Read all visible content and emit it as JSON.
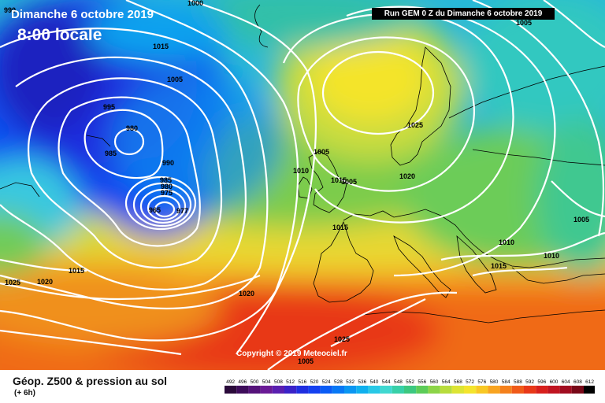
{
  "header": {
    "date_label": "Dimanche 6 octobre 2019",
    "time_label": "8:00 locale",
    "run_label": "Run GEM 0 Z du Dimanche 6 octobre 2019"
  },
  "copyright": "Copyright © 2019 Meteociel.fr",
  "footer": {
    "product_title": "Géop. Z500 & pression au sol",
    "horizon": "(+ 6h)"
  },
  "legend": {
    "ticks": [
      "492",
      "496",
      "500",
      "504",
      "508",
      "512",
      "516",
      "520",
      "524",
      "528",
      "532",
      "536",
      "540",
      "544",
      "548",
      "552",
      "556",
      "560",
      "564",
      "568",
      "572",
      "576",
      "580",
      "584",
      "588",
      "592",
      "596",
      "600",
      "604",
      "608",
      "612"
    ],
    "colors": [
      "#2a0a3a",
      "#3d0c5a",
      "#55137a",
      "#6a1a96",
      "#5a1fb0",
      "#3a22c8",
      "#1f2ee0",
      "#1440f0",
      "#0a5cf5",
      "#0878f5",
      "#0a96f2",
      "#10b0ee",
      "#28c8e6",
      "#40d8d0",
      "#38d0a8",
      "#3cc880",
      "#5ccc58",
      "#8cd448",
      "#b8dc3c",
      "#dce434",
      "#f4e42c",
      "#f8c824",
      "#f8a420",
      "#f4801c",
      "#f05a18",
      "#e83818",
      "#d8201c",
      "#c01420",
      "#a00c20",
      "#780818",
      "#000000"
    ]
  },
  "isobar_labels": [
    "990",
    "1000",
    "1005",
    "1015",
    "1005",
    "995",
    "980",
    "985",
    "990",
    "985",
    "980",
    "975",
    "965",
    "977",
    "1010",
    "1005",
    "1015",
    "1005",
    "1020",
    "1025",
    "1025",
    "1020",
    "1015",
    "1010",
    "1010",
    "1015",
    "1020",
    "1025",
    "1005",
    "1015",
    "1005"
  ]
}
